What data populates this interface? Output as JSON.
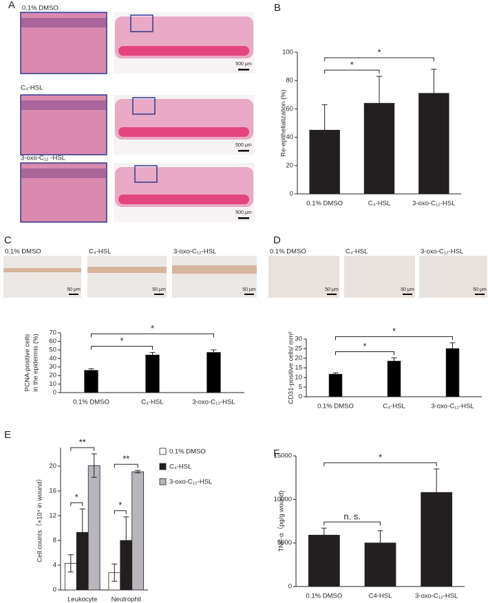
{
  "panels": {
    "letters": [
      "A",
      "B",
      "C",
      "D",
      "E",
      "F"
    ],
    "A": {
      "labels": [
        "0.1% DMSO",
        "C₄-HSL",
        "3-oxo-C₁₂ -HSL"
      ],
      "scale_bars": [
        "500 μm",
        "500 μm",
        "500 μm"
      ]
    },
    "C": {
      "labels": [
        "0.1% DMSO",
        "C₄-HSL",
        "3-oxo-C₁₂-HSL"
      ],
      "scale_bars": [
        "50 μm",
        "50 μm",
        "50 μm"
      ]
    },
    "D": {
      "labels": [
        "0.1% DMSO",
        "C₄-HSL",
        "3-oxo-C₁₂-HSL"
      ],
      "scale_bars": [
        "50 μm",
        "50 μm",
        "50 μm"
      ]
    }
  },
  "chart_data": [
    {
      "type": "bar",
      "ylabel": [
        "Re-epithelialization (%)"
      ],
      "categories": [
        "0.1% DMSO",
        "C₄-HSL",
        "3-oxo-C₁₂-HSL"
      ],
      "values": [
        45,
        64,
        71
      ],
      "errors": [
        18,
        19,
        17
      ],
      "color": "#231f20",
      "ylim": [
        0,
        100
      ],
      "yticks": [
        0,
        20,
        40,
        60,
        80,
        100
      ],
      "annotations": [
        "*",
        "*"
      ]
    },
    {
      "type": "bar",
      "ylabel": [
        "PCNA-positive cells",
        "in the epidermis (%)"
      ],
      "categories": [
        "0.1% DMSO",
        "C₄-HSL",
        "3-oxo-C₁₂-HSL"
      ],
      "values": [
        26,
        44,
        47
      ],
      "errors": [
        2,
        3,
        3
      ],
      "color": "#000000",
      "ylim": [
        0,
        70
      ],
      "yticks": [
        0,
        10,
        20,
        30,
        40,
        50,
        60,
        70
      ],
      "annotations": [
        "*",
        "*"
      ]
    },
    {
      "type": "bar",
      "ylabel": [
        "CD31-positive cells/ mm²"
      ],
      "categories": [
        "0.1% DMSO",
        "C₄-HSL",
        "3-oxo-C₁₂-HSL"
      ],
      "values": [
        11.7,
        18.5,
        25
      ],
      "errors": [
        0.7,
        1.7,
        3
      ],
      "color": "#000000",
      "ylim": [
        0,
        30
      ],
      "yticks": [
        0,
        5,
        10,
        15,
        20,
        25,
        30
      ],
      "annotations": [
        "*",
        "*"
      ]
    },
    {
      "type": "bar",
      "ylabel": [
        "Cell counts（×10⁴ in wound）"
      ],
      "categories": [
        "Leukocyte",
        "Neutrophil"
      ],
      "series": [
        {
          "name": "0.1% DMSO",
          "color": "#ffffff",
          "values": [
            4.3,
            2.8
          ],
          "errors": [
            1.4,
            1.4
          ]
        },
        {
          "name": "C₄-HSL",
          "color": "#231f20",
          "values": [
            9.3,
            8.0
          ],
          "errors": [
            3.8,
            3.8
          ]
        },
        {
          "name": "3-oxo-C₁₂-HSL",
          "color": "#b8b6bd",
          "values": [
            20.1,
            19.1
          ],
          "errors": [
            1.9,
            0.2
          ]
        }
      ],
      "ylim": [
        0,
        23
      ],
      "yticks": [
        0,
        4,
        8,
        12,
        16,
        20
      ],
      "annotations": [
        [
          "*",
          "**"
        ],
        [
          "*",
          "**"
        ]
      ]
    },
    {
      "type": "bar",
      "ylabel": [
        "TNF-α（pg/g wound)"
      ],
      "categories": [
        "0.1% DMSO",
        "C4-HSL",
        "3-oxo-C₁₂-HSL"
      ],
      "values": [
        5900,
        5000,
        10800
      ],
      "errors": [
        800,
        1400,
        2700
      ],
      "color": "#231f20",
      "ylim": [
        0,
        15000
      ],
      "yticks": [
        0,
        5000,
        10000,
        15000
      ],
      "annotations": [
        "n. s.",
        "*"
      ]
    }
  ]
}
